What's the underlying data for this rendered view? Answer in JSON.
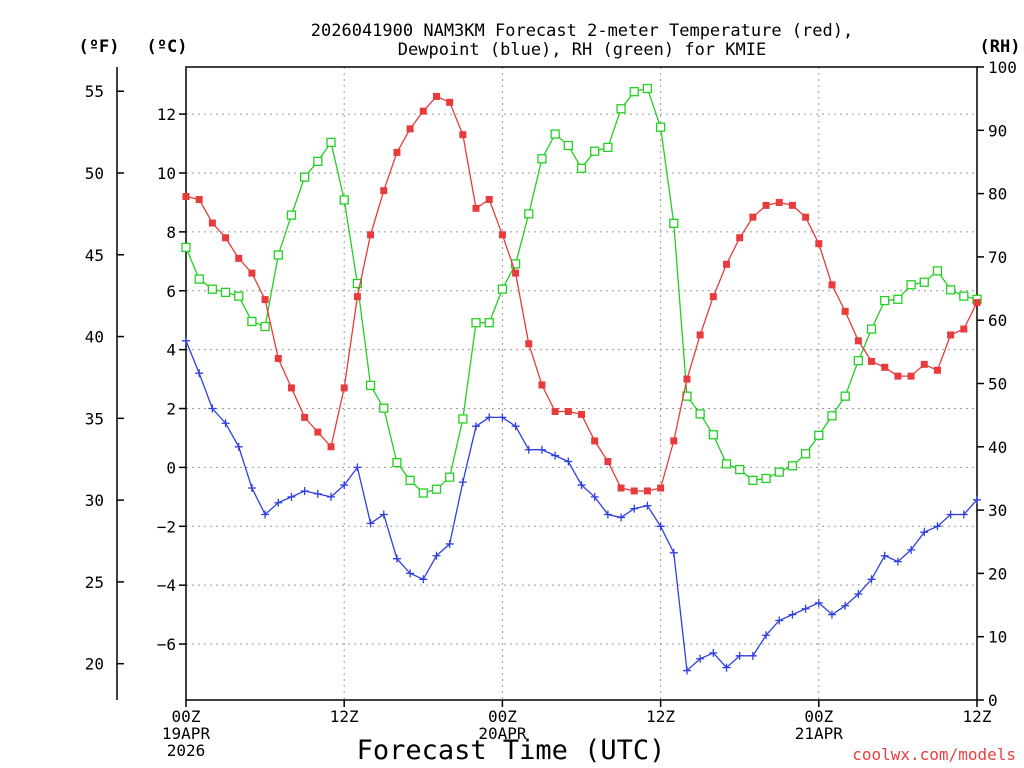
{
  "chart_data": {
    "type": "line",
    "title_line1": "2026041900 NAM3KM Forecast 2-meter Temperature (red),",
    "title_line2": "Dewpoint (blue), RH (green) for KMIE",
    "xlabel": "Forecast Time (UTC)",
    "unit_f": "(ºF)",
    "unit_c": "(ºC)",
    "unit_rh": "(RH)",
    "credit": "coolwx.com/models",
    "x_range_hours": [
      0,
      60
    ],
    "celsius_range": [
      -7.9,
      13.6
    ],
    "rh_range": [
      0,
      100
    ],
    "x_ticks": [
      {
        "hour": 0,
        "lines": [
          "00Z",
          "19APR",
          "2026"
        ]
      },
      {
        "hour": 12,
        "lines": [
          "12Z"
        ]
      },
      {
        "hour": 24,
        "lines": [
          "00Z",
          "20APR"
        ]
      },
      {
        "hour": 36,
        "lines": [
          "12Z"
        ]
      },
      {
        "hour": 48,
        "lines": [
          "00Z",
          "21APR"
        ]
      },
      {
        "hour": 60,
        "lines": [
          "12Z"
        ]
      }
    ],
    "celsius_ticks": [
      "12",
      "10",
      "8",
      "6",
      "4",
      "2",
      "0",
      "−2",
      "−4",
      "−6"
    ],
    "fahrenheit_ticks": [
      "55",
      "50",
      "45",
      "40",
      "35",
      "30",
      "25",
      "20"
    ],
    "rh_ticks": [
      "100",
      "90",
      "80",
      "70",
      "60",
      "50",
      "40",
      "30",
      "20",
      "10",
      "0"
    ],
    "series": [
      {
        "name": "Temperature",
        "unit": "C",
        "color": "#e83b3b",
        "marker": "filled-square",
        "values": [
          9.2,
          9.1,
          8.3,
          7.8,
          7.1,
          6.6,
          5.7,
          3.7,
          2.7,
          1.7,
          1.2,
          0.7,
          2.7,
          5.8,
          7.9,
          9.4,
          10.7,
          11.5,
          12.1,
          12.6,
          12.4,
          11.3,
          8.8,
          9.1,
          7.9,
          6.6,
          4.2,
          2.8,
          1.9,
          1.9,
          1.8,
          0.9,
          0.2,
          -0.7,
          -0.8,
          -0.8,
          -0.7,
          0.9,
          3.0,
          4.5,
          5.8,
          6.9,
          7.8,
          8.5,
          8.9,
          9.0,
          8.9,
          8.5,
          7.6,
          6.2,
          5.3,
          4.3,
          3.6,
          3.4,
          3.1,
          3.1,
          3.5,
          3.3,
          4.5,
          4.7,
          5.6
        ]
      },
      {
        "name": "Dewpoint",
        "unit": "C",
        "color": "#2f3fe0",
        "marker": "plus",
        "values": [
          4.3,
          3.2,
          2.0,
          1.5,
          0.7,
          -0.7,
          -1.6,
          -1.2,
          -1.0,
          -0.8,
          -0.9,
          -1.0,
          -0.6,
          0.0,
          -1.9,
          -1.6,
          -3.1,
          -3.6,
          -3.8,
          -3.0,
          -2.6,
          -0.5,
          1.4,
          1.7,
          1.7,
          1.4,
          0.6,
          0.6,
          0.4,
          0.2,
          -0.6,
          -1.0,
          -1.6,
          -1.7,
          -1.4,
          -1.3,
          -2.0,
          -2.9,
          -6.9,
          -6.5,
          -6.3,
          -6.8,
          -6.4,
          -6.4,
          -5.7,
          -5.2,
          -5.0,
          -4.8,
          -4.6,
          -5.0,
          -4.7,
          -4.3,
          -3.8,
          -3.0,
          -3.2,
          -2.8,
          -2.2,
          -2.0,
          -1.6,
          -1.6,
          -1.1
        ]
      },
      {
        "name": "RH",
        "unit": "%",
        "color": "#22d022",
        "marker": "open-square",
        "values": [
          71.5,
          66.5,
          64.9,
          64.4,
          63.8,
          59.8,
          59.0,
          70.3,
          76.6,
          82.6,
          85.1,
          88.1,
          79.0,
          65.8,
          49.7,
          46.1,
          37.5,
          34.7,
          32.7,
          33.3,
          35.2,
          44.4,
          59.6,
          59.6,
          64.9,
          68.9,
          76.8,
          85.5,
          89.4,
          87.6,
          84.0,
          86.7,
          87.3,
          93.4,
          96.1,
          96.6,
          90.5,
          75.3,
          48.0,
          45.2,
          41.9,
          37.3,
          36.4,
          34.7,
          35.0,
          36.0,
          37.0,
          38.9,
          41.8,
          44.9,
          48.0,
          53.6,
          58.6,
          63.1,
          63.3,
          65.6,
          66.0,
          67.8,
          64.8,
          63.8,
          63.3
        ]
      }
    ]
  }
}
